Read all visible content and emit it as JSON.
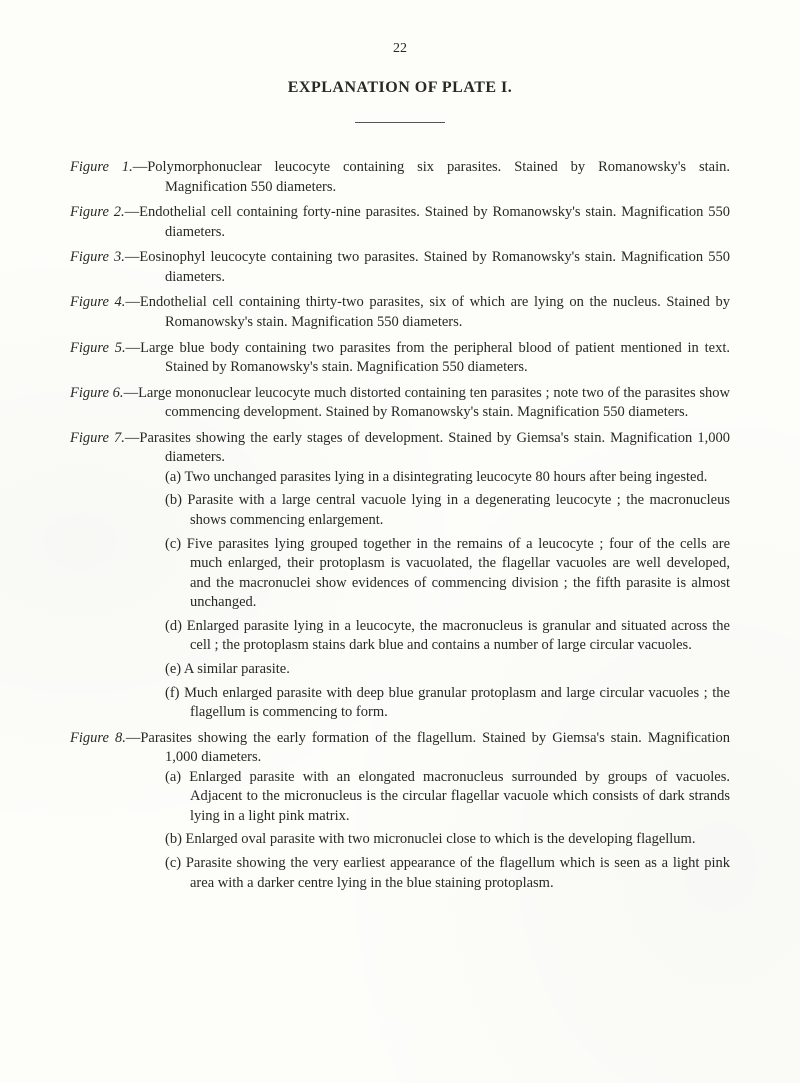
{
  "page_number": "22",
  "title": "EXPLANATION OF PLATE I.",
  "figures": [
    {
      "label": "Figure 1.",
      "text": "—Polymorphonuclear leucocyte containing six parasites. Stained by Roman­owsky's stain. Magnification 550 diameters."
    },
    {
      "label": "Figure 2.",
      "text": "—Endothelial cell containing forty-nine parasites. Stained by Romanowsky's stain. Magnification 550 diameters."
    },
    {
      "label": "Figure 3.",
      "text": "—Eosinophyl leucocyte containing two parasites. Stained by Romanowsky's stain. Magnification 550 diameters."
    },
    {
      "label": "Figure 4.",
      "text": "—Endothelial cell containing thirty-two parasites, six of which are lying on the nucleus. Stained by Romanowsky's stain. Magnification 550 diameters."
    },
    {
      "label": "Figure 5.",
      "text": "—Large blue body containing two parasites from the peripheral blood of patient mentioned in text. Stained by Romanowsky's stain. Magnification 550 diameters."
    },
    {
      "label": "Figure 6.",
      "text": "—Large mononuclear leucocyte much distorted containing ten parasites ; note two of the parasites show commencing development. Stained by Roma­nowsky's stain. Magnification 550 diameters."
    },
    {
      "label": "Figure 7.",
      "text": "—Parasites showing the early stages of development. Stained by Giemsa's stain. Magnification 1,000 diameters.",
      "subs": [
        {
          "marker": "(a)",
          "text": "Two unchanged parasites lying in a disintegrating leucocyte 80 hours after being ingested."
        },
        {
          "marker": "(b)",
          "text": "Parasite with a large central vacuole lying in a degenerating leucocyte ; the macronucleus shows commencing enlargement."
        },
        {
          "marker": "(c)",
          "text": "Five parasites lying grouped together in the remains of a leucocyte ; four of the cells are much enlarged, their protoplasm is vacuolated, the flagellar vacuoles are well developed, and the macronuclei show evidences of commencing division ; the fifth parasite is almost unchanged."
        },
        {
          "marker": "(d)",
          "text": "Enlarged parasite lying in a leucocyte, the macronucleus is granular and situated across the cell ; the protoplasm stains dark blue and contains a number of large circular vacuoles."
        },
        {
          "marker": "(e)",
          "text": "A similar parasite."
        },
        {
          "marker": "(f)",
          "text": "Much enlarged parasite with deep blue granular protoplasm and large circular vacuoles ; the flagellum is commencing to form."
        }
      ]
    },
    {
      "label": "Figure 8.",
      "text": "—Parasites showing the early formation of the flagellum. Stained by Giemsa's stain. Magnification 1,000 diameters.",
      "subs": [
        {
          "marker": "(a)",
          "text": "Enlarged parasite with an elongated macronucleus surrounded by groups of vacuoles. Adjacent to the micronucleus is the circular flagellar vacuole which consists of dark strands lying in a light pink matrix."
        },
        {
          "marker": "(b)",
          "text": "Enlarged oval parasite with two micronuclei close to which is the developing flagellum."
        },
        {
          "marker": "(c)",
          "text": "Parasite showing the very earliest appearance of the flagellum which is seen as a light pink area with a darker centre lying in the blue staining protoplasm."
        }
      ]
    }
  ]
}
